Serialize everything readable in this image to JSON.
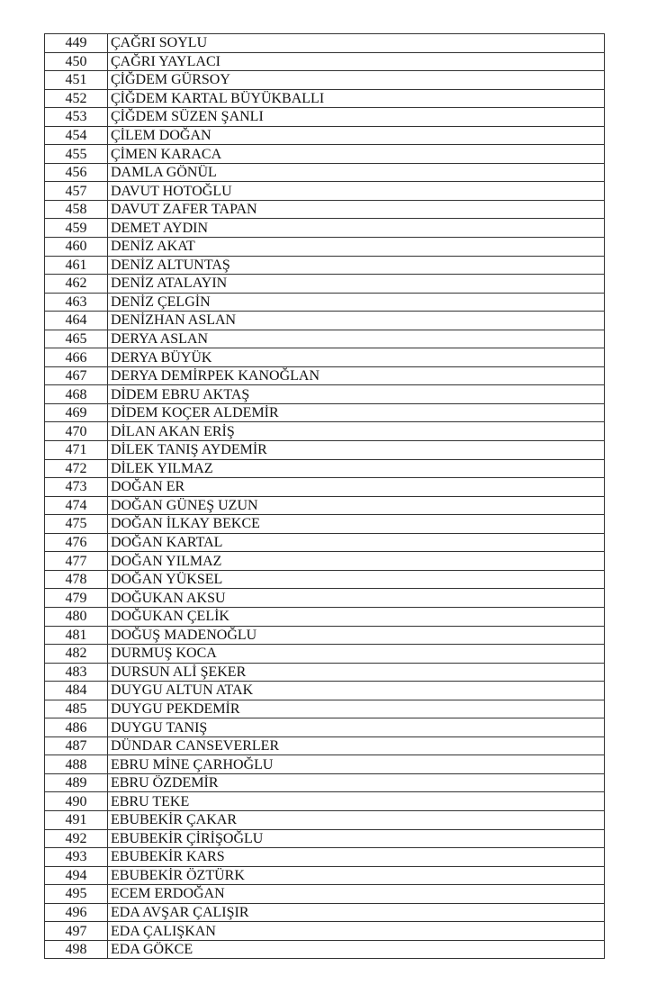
{
  "rows": [
    {
      "no": "449",
      "name": "ÇAĞRI SOYLU"
    },
    {
      "no": "450",
      "name": "ÇAĞRI YAYLACI"
    },
    {
      "no": "451",
      "name": "ÇİĞDEM GÜRSOY"
    },
    {
      "no": "452",
      "name": "ÇİĞDEM KARTAL BÜYÜKBALLI"
    },
    {
      "no": "453",
      "name": "ÇİĞDEM SÜZEN ŞANLI"
    },
    {
      "no": "454",
      "name": "ÇİLEM DOĞAN"
    },
    {
      "no": "455",
      "name": "ÇİMEN KARACA"
    },
    {
      "no": "456",
      "name": "DAMLA GÖNÜL"
    },
    {
      "no": "457",
      "name": "DAVUT HOTOĞLU"
    },
    {
      "no": "458",
      "name": "DAVUT ZAFER TAPAN"
    },
    {
      "no": "459",
      "name": "DEMET AYDIN"
    },
    {
      "no": "460",
      "name": "DENİZ AKAT"
    },
    {
      "no": "461",
      "name": "DENİZ ALTUNTAŞ"
    },
    {
      "no": "462",
      "name": "DENİZ ATALAYIN"
    },
    {
      "no": "463",
      "name": "DENİZ ÇELGİN"
    },
    {
      "no": "464",
      "name": "DENİZHAN ASLAN"
    },
    {
      "no": "465",
      "name": "DERYA ASLAN"
    },
    {
      "no": "466",
      "name": "DERYA BÜYÜK"
    },
    {
      "no": "467",
      "name": "DERYA DEMİRPEK KANOĞLAN"
    },
    {
      "no": "468",
      "name": "DİDEM EBRU AKTAŞ"
    },
    {
      "no": "469",
      "name": "DİDEM KOÇER ALDEMİR"
    },
    {
      "no": "470",
      "name": "DİLAN AKAN ERİŞ"
    },
    {
      "no": "471",
      "name": "DİLEK TANIŞ AYDEMİR"
    },
    {
      "no": "472",
      "name": "DİLEK YILMAZ"
    },
    {
      "no": "473",
      "name": "DOĞAN ER"
    },
    {
      "no": "474",
      "name": "DOĞAN GÜNEŞ UZUN"
    },
    {
      "no": "475",
      "name": "DOĞAN İLKAY BEKCE"
    },
    {
      "no": "476",
      "name": "DOĞAN KARTAL"
    },
    {
      "no": "477",
      "name": "DOĞAN YILMAZ"
    },
    {
      "no": "478",
      "name": "DOĞAN YÜKSEL"
    },
    {
      "no": "479",
      "name": "DOĞUKAN AKSU"
    },
    {
      "no": "480",
      "name": "DOĞUKAN ÇELİK"
    },
    {
      "no": "481",
      "name": "DOĞUŞ MADENOĞLU"
    },
    {
      "no": "482",
      "name": "DURMUŞ KOCA"
    },
    {
      "no": "483",
      "name": "DURSUN ALİ ŞEKER"
    },
    {
      "no": "484",
      "name": "DUYGU ALTUN ATAK"
    },
    {
      "no": "485",
      "name": "DUYGU PEKDEMİR"
    },
    {
      "no": "486",
      "name": "DUYGU TANIŞ"
    },
    {
      "no": "487",
      "name": "DÜNDAR CANSEVERLER"
    },
    {
      "no": "488",
      "name": "EBRU MİNE ÇARHOĞLU"
    },
    {
      "no": "489",
      "name": "EBRU ÖZDEMİR"
    },
    {
      "no": "490",
      "name": "EBRU TEKE"
    },
    {
      "no": "491",
      "name": "EBUBEKİR ÇAKAR"
    },
    {
      "no": "492",
      "name": "EBUBEKİR ÇİRİŞOĞLU"
    },
    {
      "no": "493",
      "name": "EBUBEKİR KARS"
    },
    {
      "no": "494",
      "name": "EBUBEKİR ÖZTÜRK"
    },
    {
      "no": "495",
      "name": "ECEM ERDOĞAN"
    },
    {
      "no": "496",
      "name": "EDA AVŞAR ÇALIŞIR"
    },
    {
      "no": "497",
      "name": "EDA ÇALIŞKAN"
    },
    {
      "no": "498",
      "name": "EDA GÖKCE"
    }
  ]
}
